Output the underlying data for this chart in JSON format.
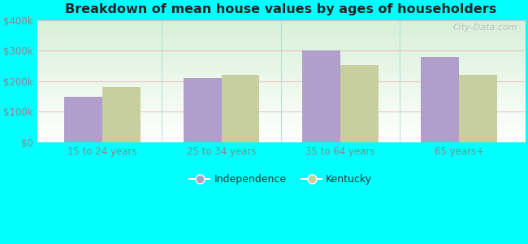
{
  "title": "Breakdown of mean house values by ages of householders",
  "categories": [
    "15 to 24 years",
    "25 to 34 years",
    "35 to 64 years",
    "65 years+"
  ],
  "independence_values": [
    150000,
    210000,
    300000,
    280000
  ],
  "kentucky_values": [
    182000,
    222000,
    252000,
    222000
  ],
  "bar_color_independence": "#b09fcc",
  "bar_color_kentucky": "#c8cf9e",
  "background_color": "#00ffff",
  "title_color": "#222222",
  "ylim": [
    0,
    400000
  ],
  "yticks": [
    0,
    100000,
    200000,
    300000,
    400000
  ],
  "ytick_labels": [
    "$0",
    "$100k",
    "$200k",
    "$300k",
    "$400k"
  ],
  "legend_labels": [
    "Independence",
    "Kentucky"
  ],
  "watermark": "City-Data.com",
  "bar_width": 0.32,
  "grid_color": "#f0b0b0",
  "tick_color": "#888888",
  "legend_text_color": "#333333",
  "divider_color": "#aaddcc",
  "plot_bg_color_top": "#d8f0d8",
  "plot_bg_color_bottom": "#f8fff8"
}
